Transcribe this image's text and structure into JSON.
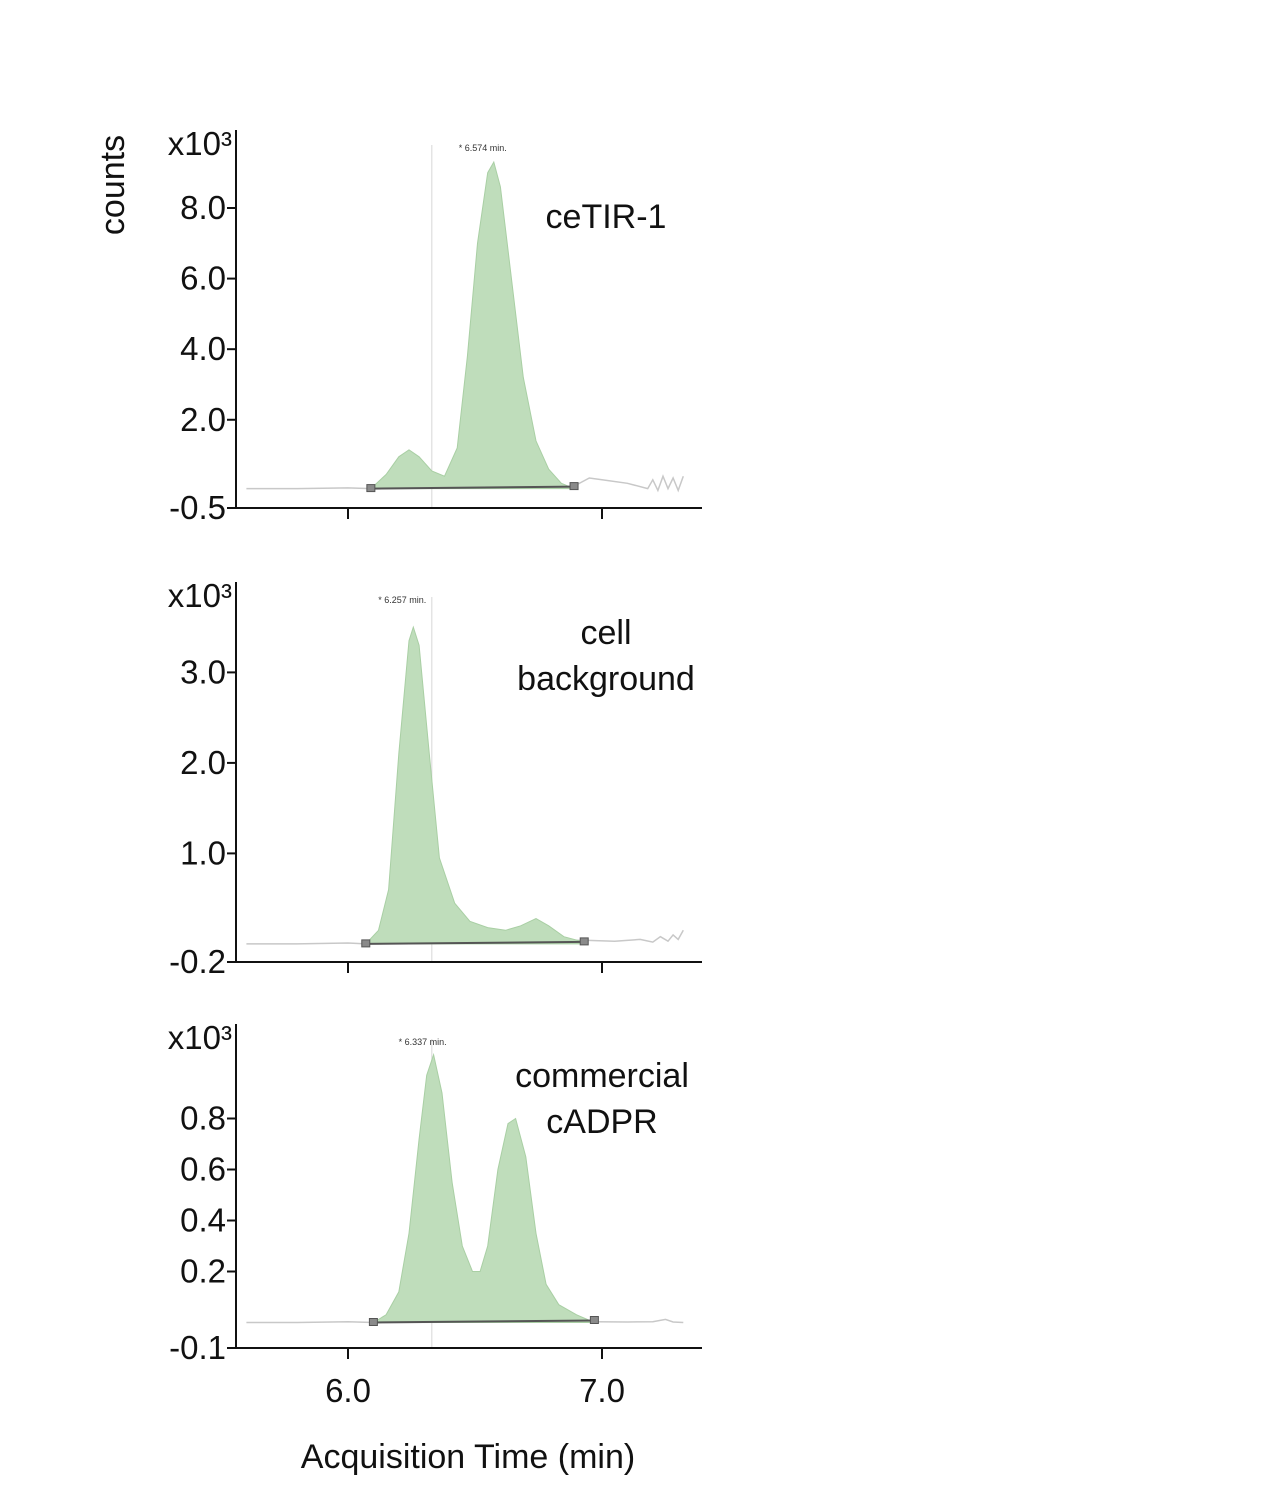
{
  "figure": {
    "y_axis_title": "counts",
    "x_axis_title": "Acquisition Time (min)"
  },
  "colors": {
    "fill": "#bfddbb",
    "fill_stroke": "#a9cfa4",
    "axis": "#111111",
    "trace": "#c8c8c8",
    "baseline": "#555555",
    "marker_line": "#d8d8d8"
  },
  "chart_data": [
    {
      "type": "area",
      "sample_label": [
        "ceTIR-1"
      ],
      "multiplier_label": "x10³",
      "peak_label": "* 6.574 min.",
      "peak_time": 6.574,
      "retention_marker": 6.33,
      "xlim": [
        5.6,
        7.4
      ],
      "ylim": [
        -0.5,
        9.7
      ],
      "yticks": [
        -0.5,
        2.0,
        4.0,
        6.0,
        8.0
      ],
      "ytick_labels": [
        "-0.5",
        "2.0",
        "4.0",
        "6.0",
        "8.0"
      ],
      "baseline_level": 0.05,
      "integration": [
        6.09,
        6.89
      ],
      "series": [
        {
          "x": [
            6.09,
            6.15,
            6.2,
            6.24,
            6.28,
            6.33,
            6.38,
            6.43,
            6.47,
            6.51,
            6.55,
            6.574,
            6.6,
            6.64,
            6.69,
            6.74,
            6.79,
            6.84,
            6.89
          ],
          "y": [
            0.05,
            0.45,
            0.95,
            1.15,
            0.95,
            0.55,
            0.4,
            1.2,
            3.8,
            7.0,
            9.0,
            9.3,
            8.6,
            6.2,
            3.2,
            1.4,
            0.6,
            0.2,
            0.05
          ]
        }
      ],
      "trace": {
        "x": [
          5.6,
          5.8,
          6.0,
          6.09,
          6.89,
          6.95,
          7.0,
          7.1,
          7.18,
          7.2,
          7.22,
          7.24,
          7.26,
          7.28,
          7.3,
          7.32
        ],
        "y": [
          0.05,
          0.05,
          0.07,
          0.05,
          0.12,
          0.35,
          0.3,
          0.2,
          0.05,
          0.3,
          0.0,
          0.4,
          0.05,
          0.35,
          0.0,
          0.4
        ]
      }
    },
    {
      "type": "area",
      "sample_label": [
        "cell",
        "background"
      ],
      "multiplier_label": "x10³",
      "peak_label": "* 6.257 min.",
      "peak_time": 6.257,
      "retention_marker": 6.33,
      "xlim": [
        5.6,
        7.4
      ],
      "ylim": [
        -0.2,
        3.8
      ],
      "yticks": [
        -0.2,
        1.0,
        2.0,
        3.0
      ],
      "ytick_labels": [
        "-0.2",
        "1.0",
        "2.0",
        "3.0"
      ],
      "baseline_level": 0.0,
      "integration": [
        6.07,
        6.93
      ],
      "series": [
        {
          "x": [
            6.07,
            6.12,
            6.16,
            6.2,
            6.24,
            6.257,
            6.28,
            6.32,
            6.36,
            6.42,
            6.48,
            6.55,
            6.62,
            6.68,
            6.74,
            6.79,
            6.85,
            6.93
          ],
          "y": [
            0.0,
            0.15,
            0.6,
            2.1,
            3.35,
            3.5,
            3.3,
            2.1,
            0.95,
            0.45,
            0.25,
            0.18,
            0.15,
            0.2,
            0.28,
            0.2,
            0.08,
            0.02
          ]
        }
      ],
      "trace": {
        "x": [
          5.6,
          5.8,
          6.0,
          6.07,
          6.93,
          7.05,
          7.15,
          7.2,
          7.23,
          7.26,
          7.28,
          7.3,
          7.32
        ],
        "y": [
          0.0,
          0.0,
          0.01,
          0.0,
          0.04,
          0.03,
          0.05,
          0.02,
          0.08,
          0.03,
          0.1,
          0.05,
          0.15
        ]
      }
    },
    {
      "type": "area",
      "sample_label": [
        "commercial",
        "cADPR"
      ],
      "multiplier_label": "x10³",
      "peak_label": "* 6.337 min.",
      "peak_time": 6.337,
      "retention_marker": 6.33,
      "xlim": [
        5.6,
        7.4
      ],
      "ylim": [
        -0.1,
        1.1
      ],
      "yticks": [
        -0.1,
        0.2,
        0.4,
        0.6,
        0.8
      ],
      "ytick_labels": [
        "-0.1",
        "0.2",
        "0.4",
        "0.6",
        "0.8"
      ],
      "baseline_level": 0.0,
      "integration": [
        6.1,
        6.97
      ],
      "series": [
        {
          "x": [
            6.1,
            6.15,
            6.2,
            6.24,
            6.28,
            6.31,
            6.337,
            6.37,
            6.41,
            6.45,
            6.49,
            6.52,
            6.55,
            6.59,
            6.63,
            6.66,
            6.7,
            6.74,
            6.78,
            6.83,
            6.9,
            6.97
          ],
          "y": [
            0.0,
            0.03,
            0.12,
            0.35,
            0.72,
            0.97,
            1.05,
            0.9,
            0.55,
            0.3,
            0.2,
            0.2,
            0.3,
            0.6,
            0.78,
            0.8,
            0.65,
            0.35,
            0.15,
            0.07,
            0.03,
            0.0
          ]
        }
      ],
      "trace": {
        "x": [
          5.6,
          5.8,
          6.0,
          6.1,
          6.97,
          7.1,
          7.2,
          7.25,
          7.28,
          7.32
        ],
        "y": [
          0.0,
          0.0,
          0.003,
          0.0,
          0.003,
          0.002,
          0.003,
          0.012,
          0.002,
          0.0
        ]
      }
    }
  ],
  "x_axis": {
    "ticks": [
      6.0,
      7.0
    ],
    "tick_labels": [
      "6.0",
      "7.0"
    ]
  }
}
